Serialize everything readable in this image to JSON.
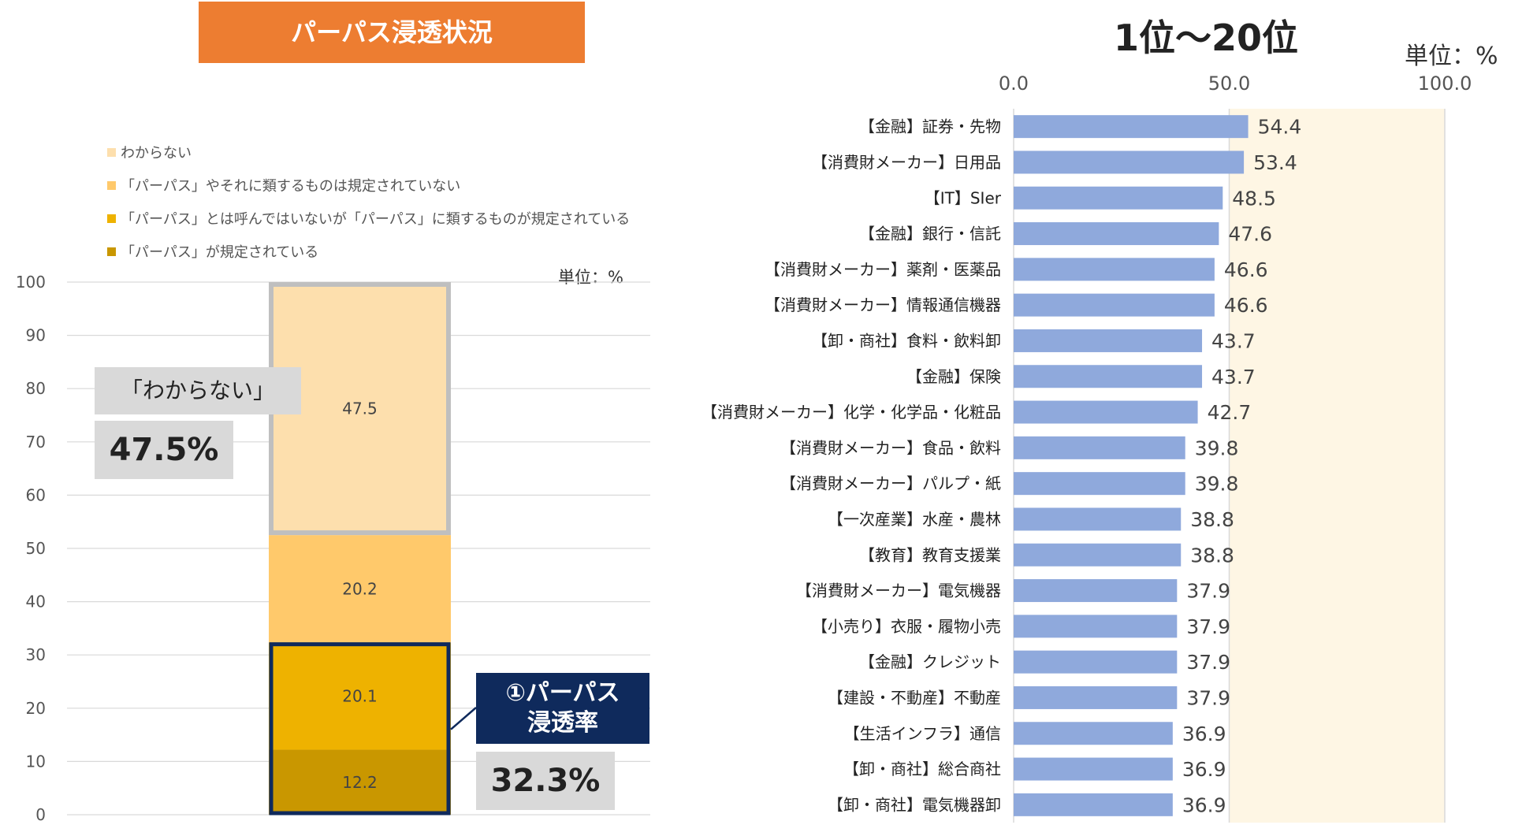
{
  "left_panel": {
    "title": "パーパス浸透状況",
    "unit_label": "単位：%",
    "callout_unknown_label": "「わからない」",
    "callout_unknown_value": "47.5%",
    "callout_penetration_label_line1": "①パーパス",
    "callout_penetration_label_line2": "浸透率",
    "callout_penetration_value": "32.3%"
  },
  "right_panel": {
    "title": "1位〜20位",
    "unit_label": "単位：%"
  },
  "colors": {
    "unknown": "#FDDFAD",
    "not_defined": "#FFC96B",
    "similar_defined": "#EEB200",
    "defined": "#C99700",
    "bar_blue": "#8FA9DC",
    "plot_bg_right": "#FEF6E4",
    "navy": "#0F2A5C",
    "orange": "#ED7D31"
  },
  "chart_data": [
    {
      "type": "bar",
      "stacked": true,
      "title": "パーパス浸透状況",
      "ylabel": "単位：%",
      "ylim": [
        0,
        100
      ],
      "yticks": [
        0,
        10,
        20,
        30,
        40,
        50,
        60,
        70,
        80,
        90,
        100
      ],
      "categories": [
        ""
      ],
      "legend_position": "top-left",
      "series": [
        {
          "name": "「パーパス」が規定されている",
          "values": [
            12.2
          ],
          "color": "#C99700"
        },
        {
          "name": "「パーパス」とは呼んではいないが「パーパス」に類するものが規定されている",
          "values": [
            20.1
          ],
          "color": "#EEB200"
        },
        {
          "name": "「パーパス」やそれに類するものは規定されていない",
          "values": [
            20.2
          ],
          "color": "#FFC96B"
        },
        {
          "name": "わからない",
          "values": [
            47.5
          ],
          "color": "#FDDFAD"
        }
      ],
      "legend_order": [
        "わからない",
        "「パーパス」やそれに類するものは規定されていない",
        "「パーパス」とは呼んではいないが「パーパス」に類するものが規定されている",
        "「パーパス」が規定されている"
      ]
    },
    {
      "type": "bar",
      "orientation": "horizontal",
      "title": "1位〜20位",
      "xlim": [
        0,
        100
      ],
      "xticks": [
        "0.0",
        "50.0",
        "100.0"
      ],
      "xtick_values": [
        0,
        50,
        100
      ],
      "categories": [
        "【金融】証券・先物",
        "【消費財メーカー】日用品",
        "【IT】SIer",
        "【金融】銀行・信託",
        "【消費財メーカー】薬剤・医薬品",
        "【消費財メーカー】情報通信機器",
        "【卸・商社】食料・飲料卸",
        "【金融】保険",
        "【消費財メーカー】化学・化学品・化粧品",
        "【消費財メーカー】食品・飲料",
        "【消費財メーカー】パルプ・紙",
        "【一次産業】水産・農林",
        "【教育】教育支援業",
        "【消費財メーカー】電気機器",
        "【小売り】衣服・履物小売",
        "【金融】クレジット",
        "【建設・不動産】不動産",
        "【生活インフラ】通信",
        "【卸・商社】総合商社",
        "【卸・商社】電気機器卸"
      ],
      "values": [
        54.4,
        53.4,
        48.5,
        47.6,
        46.6,
        46.6,
        43.7,
        43.7,
        42.7,
        39.8,
        39.8,
        38.8,
        38.8,
        37.9,
        37.9,
        37.9,
        37.9,
        36.9,
        36.9,
        36.9
      ],
      "value_labels": [
        "54.4",
        "53.4",
        "48.5",
        "47.6",
        "46.6",
        "46.6",
        "43.7",
        "43.7",
        "42.7",
        "39.8",
        "39.8",
        "38.8",
        "38.8",
        "37.9",
        "37.9",
        "37.9",
        "37.9",
        "36.9",
        "36.9",
        "36.9"
      ]
    }
  ]
}
